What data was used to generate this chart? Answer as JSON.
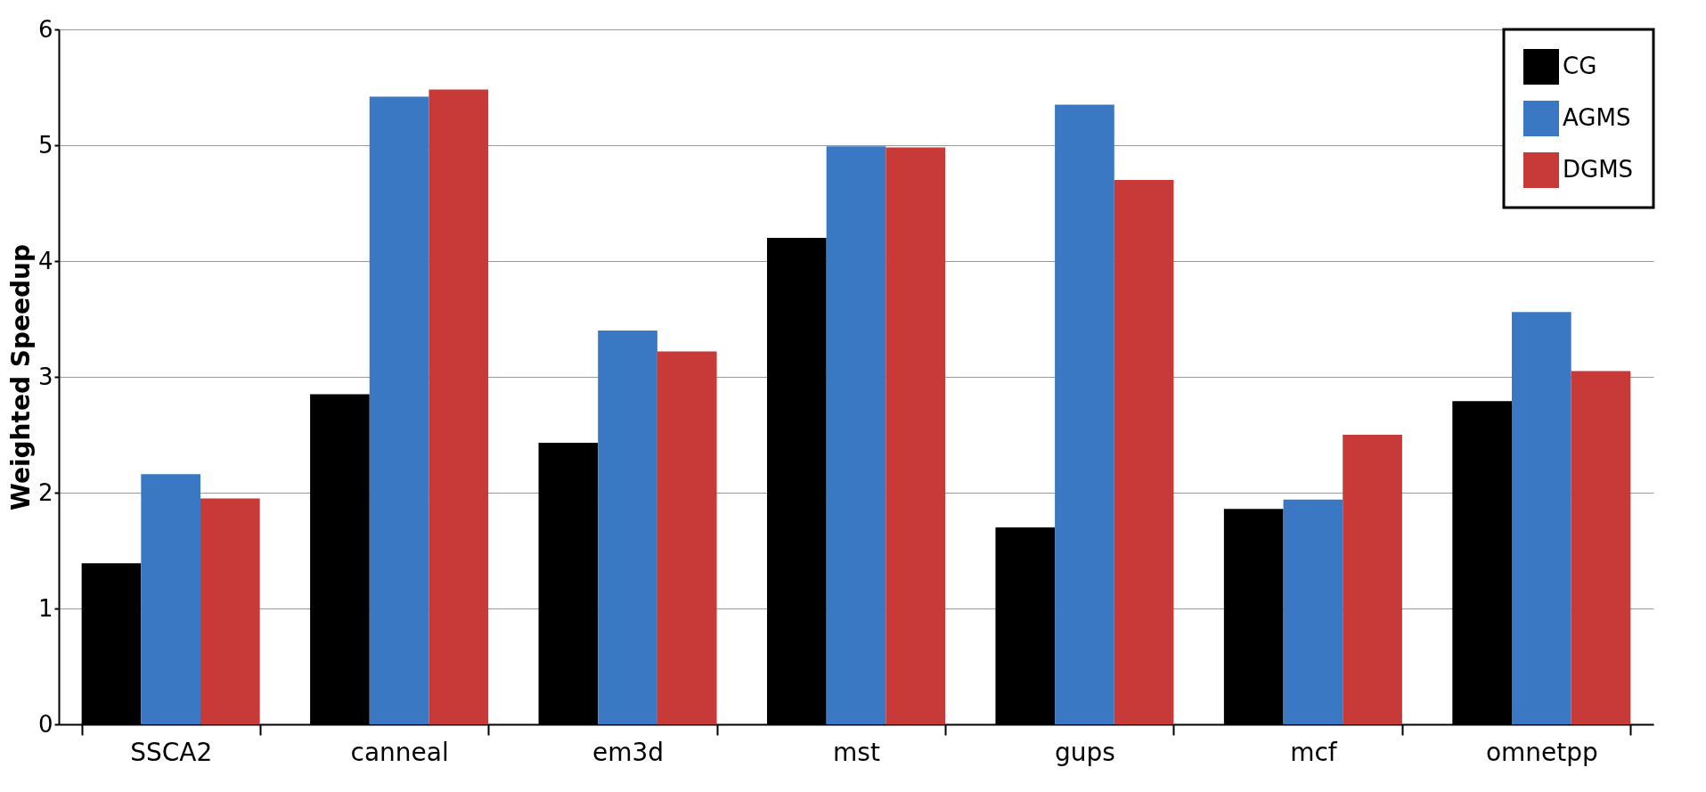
{
  "chart_data": {
    "type": "bar",
    "ylabel": "Weighted Speedup",
    "categories": [
      "SSCA2",
      "canneal",
      "em3d",
      "mst",
      "gups",
      "mcf",
      "omnetpp"
    ],
    "series": [
      {
        "name": "CG",
        "color": "#000000",
        "values": [
          1.39,
          2.85,
          2.43,
          4.2,
          1.7,
          1.86,
          2.79
        ]
      },
      {
        "name": "AGMS",
        "color": "#3a78c4",
        "values": [
          2.16,
          5.42,
          3.4,
          4.99,
          5.35,
          1.94,
          3.56
        ]
      },
      {
        "name": "DGMS",
        "color": "#c83a38",
        "values": [
          1.95,
          5.48,
          3.22,
          4.98,
          4.7,
          2.5,
          3.05
        ]
      }
    ],
    "ylim": [
      0,
      6
    ],
    "yticks": [
      0,
      1,
      2,
      3,
      4,
      5,
      6
    ],
    "grid": "y",
    "legend": "top right"
  }
}
